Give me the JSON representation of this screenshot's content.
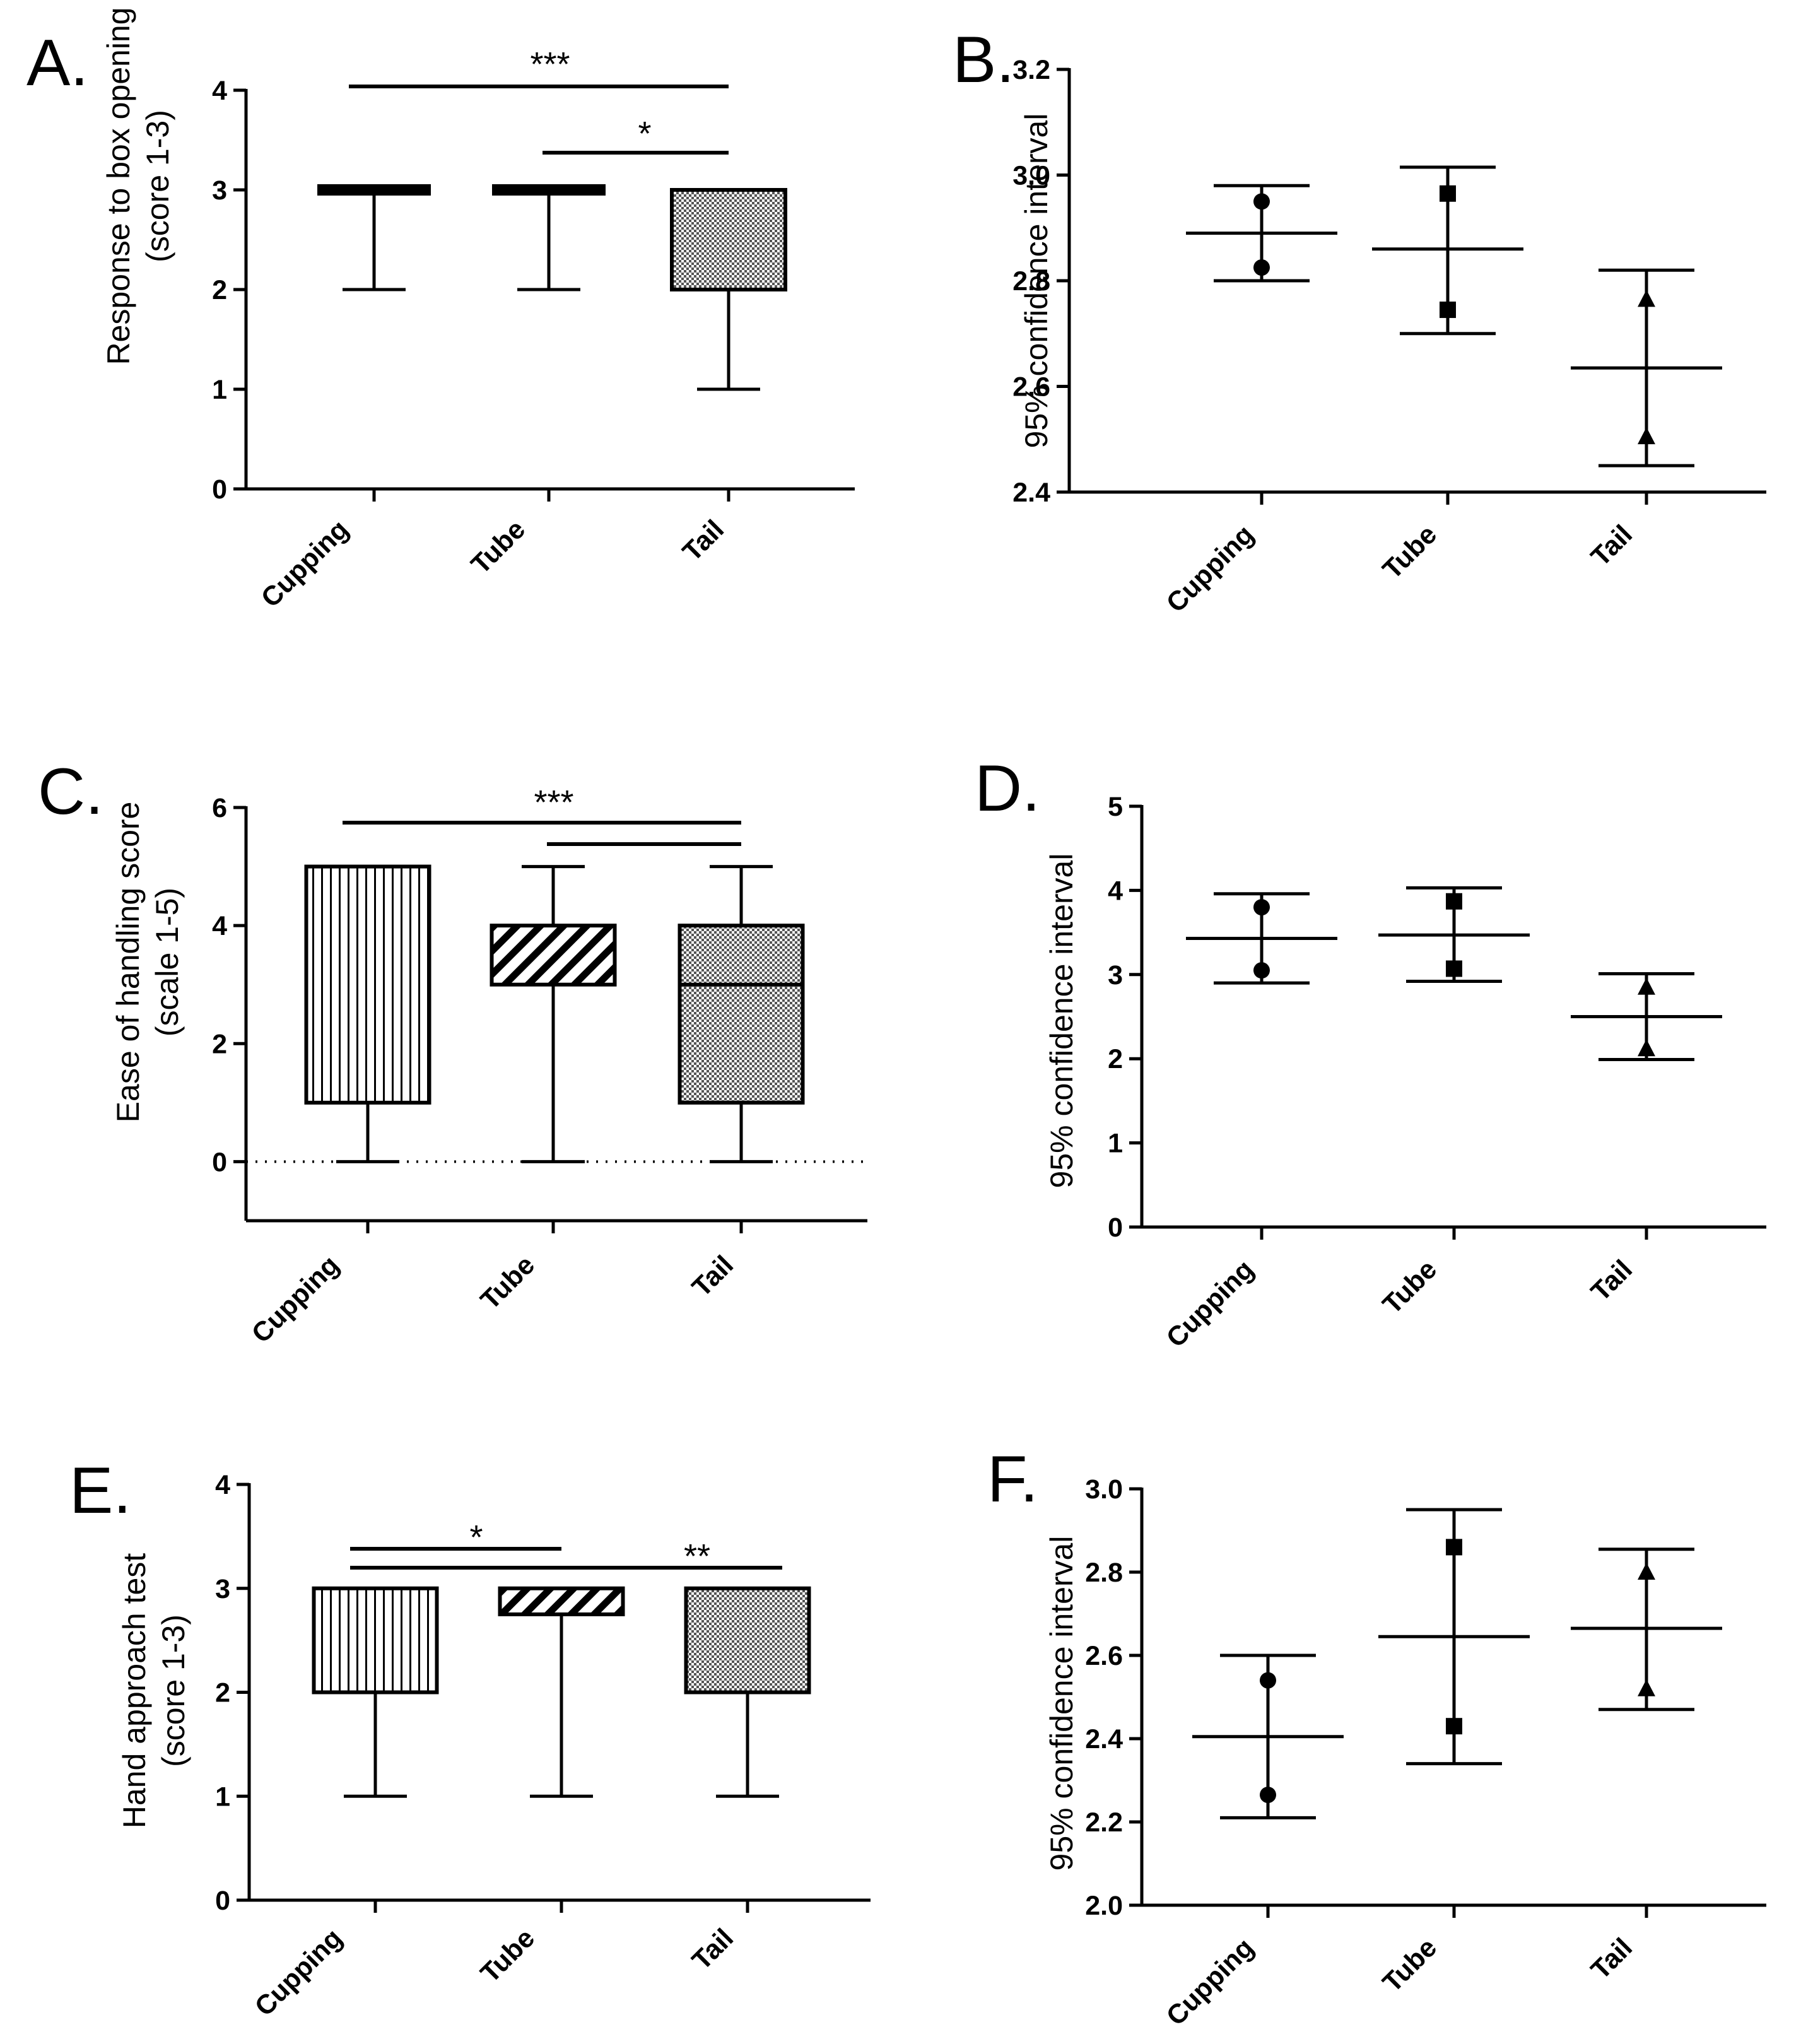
{
  "figure": {
    "panels": [
      "A.",
      "B.",
      "C.",
      "D.",
      "E.",
      "F."
    ]
  },
  "chart_data": [
    {
      "panel": "A.",
      "type": "box",
      "ylabel_lines": [
        "Response to box opening",
        "(score 1-3)"
      ],
      "ylim": [
        0,
        4
      ],
      "yticks": [
        0,
        1,
        2,
        3,
        4
      ],
      "categories": [
        "Cupping",
        "Tube",
        "Tail"
      ],
      "boxes": [
        {
          "min": 2,
          "q1": 3,
          "median": 3,
          "q3": 3,
          "max": 3,
          "pattern": "solid"
        },
        {
          "min": 2,
          "q1": 3,
          "median": 3,
          "q3": 3,
          "max": 3,
          "pattern": "solid"
        },
        {
          "min": 1,
          "q1": 2,
          "median": 3,
          "q3": 3,
          "max": 3,
          "pattern": "checker"
        }
      ],
      "significance": [
        {
          "from": 0,
          "to": 2,
          "label": "***"
        },
        {
          "from": 1,
          "to": 2,
          "label": "*"
        }
      ]
    },
    {
      "panel": "B.",
      "type": "interval",
      "ylabel": "95% confidence interval",
      "ylim": [
        2.4,
        3.2
      ],
      "yticks": [
        "2.4",
        "2.6",
        "2.8",
        "3.0",
        "3.2"
      ],
      "categories": [
        "Cupping",
        "Tube",
        "Tail"
      ],
      "marker_shapes": [
        "circle",
        "square",
        "triangle"
      ],
      "intervals": [
        {
          "mean": 2.89,
          "lower": 2.8,
          "upper": 2.98,
          "points": [
            2.95,
            2.825
          ]
        },
        {
          "mean": 2.86,
          "lower": 2.7,
          "upper": 3.015,
          "points": [
            2.965,
            2.745
          ]
        },
        {
          "mean": 2.635,
          "lower": 2.45,
          "upper": 2.82,
          "points": [
            2.765,
            2.505
          ]
        }
      ]
    },
    {
      "panel": "C.",
      "type": "box",
      "ylabel_lines": [
        "Ease of handling score",
        "(scale 1-5)"
      ],
      "ylim": [
        -1,
        6
      ],
      "yticks": [
        0,
        2,
        4,
        6
      ],
      "reference_line": 0,
      "categories": [
        "Cupping",
        "Tube",
        "Tail"
      ],
      "boxes": [
        {
          "min": 0,
          "q1": 1,
          "median": 5,
          "q3": 5,
          "max": 5,
          "pattern": "vertical"
        },
        {
          "min": 0,
          "q1": 3,
          "median": 4,
          "q3": 4,
          "max": 5,
          "pattern": "diagonal"
        },
        {
          "min": 0,
          "q1": 1,
          "median": 3,
          "q3": 4,
          "max": 5,
          "pattern": "checker"
        }
      ],
      "significance": [
        {
          "from": 0,
          "to": 2,
          "label": "***"
        },
        {
          "from": 1,
          "to": 2,
          "label": ""
        }
      ]
    },
    {
      "panel": "D.",
      "type": "interval",
      "ylabel": "95% confidence interval",
      "ylim": [
        0,
        5
      ],
      "yticks": [
        "0",
        "1",
        "2",
        "3",
        "4",
        "5"
      ],
      "categories": [
        "Cupping",
        "Tube",
        "Tail"
      ],
      "marker_shapes": [
        "circle",
        "square",
        "triangle"
      ],
      "intervals": [
        {
          "mean": 3.43,
          "lower": 2.9,
          "upper": 3.96,
          "points": [
            3.8,
            3.05
          ]
        },
        {
          "mean": 3.47,
          "lower": 2.92,
          "upper": 4.03,
          "points": [
            3.87,
            3.07
          ]
        },
        {
          "mean": 2.5,
          "lower": 1.99,
          "upper": 3.01,
          "points": [
            2.85,
            2.12
          ]
        }
      ]
    },
    {
      "panel": "E.",
      "type": "box",
      "ylabel_lines": [
        "Hand approach test",
        "(score 1-3)"
      ],
      "ylim": [
        0,
        4
      ],
      "yticks": [
        0,
        1,
        2,
        3,
        4
      ],
      "categories": [
        "Cupping",
        "Tube",
        "Tail"
      ],
      "boxes": [
        {
          "min": 1,
          "q1": 2,
          "median": 3,
          "q3": 3,
          "max": 3,
          "pattern": "vertical"
        },
        {
          "min": 1,
          "q1": 2.75,
          "median": 3,
          "q3": 3,
          "max": 3,
          "pattern": "diagonal"
        },
        {
          "min": 1,
          "q1": 2,
          "median": 3,
          "q3": 3,
          "max": 3,
          "pattern": "checker"
        }
      ],
      "significance": [
        {
          "from": 0,
          "to": 1,
          "label": "*"
        },
        {
          "from": 0,
          "to": 2,
          "label": "**"
        }
      ]
    },
    {
      "panel": "F.",
      "type": "interval",
      "ylabel": "95% confidence interval",
      "ylim": [
        2.0,
        3.0
      ],
      "yticks": [
        "2.0",
        "2.2",
        "2.4",
        "2.6",
        "2.8",
        "3.0"
      ],
      "categories": [
        "Cupping",
        "Tube",
        "Tail"
      ],
      "marker_shapes": [
        "circle",
        "square",
        "triangle"
      ],
      "intervals": [
        {
          "mean": 2.405,
          "lower": 2.21,
          "upper": 2.6,
          "points": [
            2.54,
            2.265
          ]
        },
        {
          "mean": 2.645,
          "lower": 2.34,
          "upper": 2.95,
          "points": [
            2.86,
            2.43
          ]
        },
        {
          "mean": 2.665,
          "lower": 2.47,
          "upper": 2.855,
          "points": [
            2.8,
            2.52
          ]
        }
      ]
    }
  ]
}
